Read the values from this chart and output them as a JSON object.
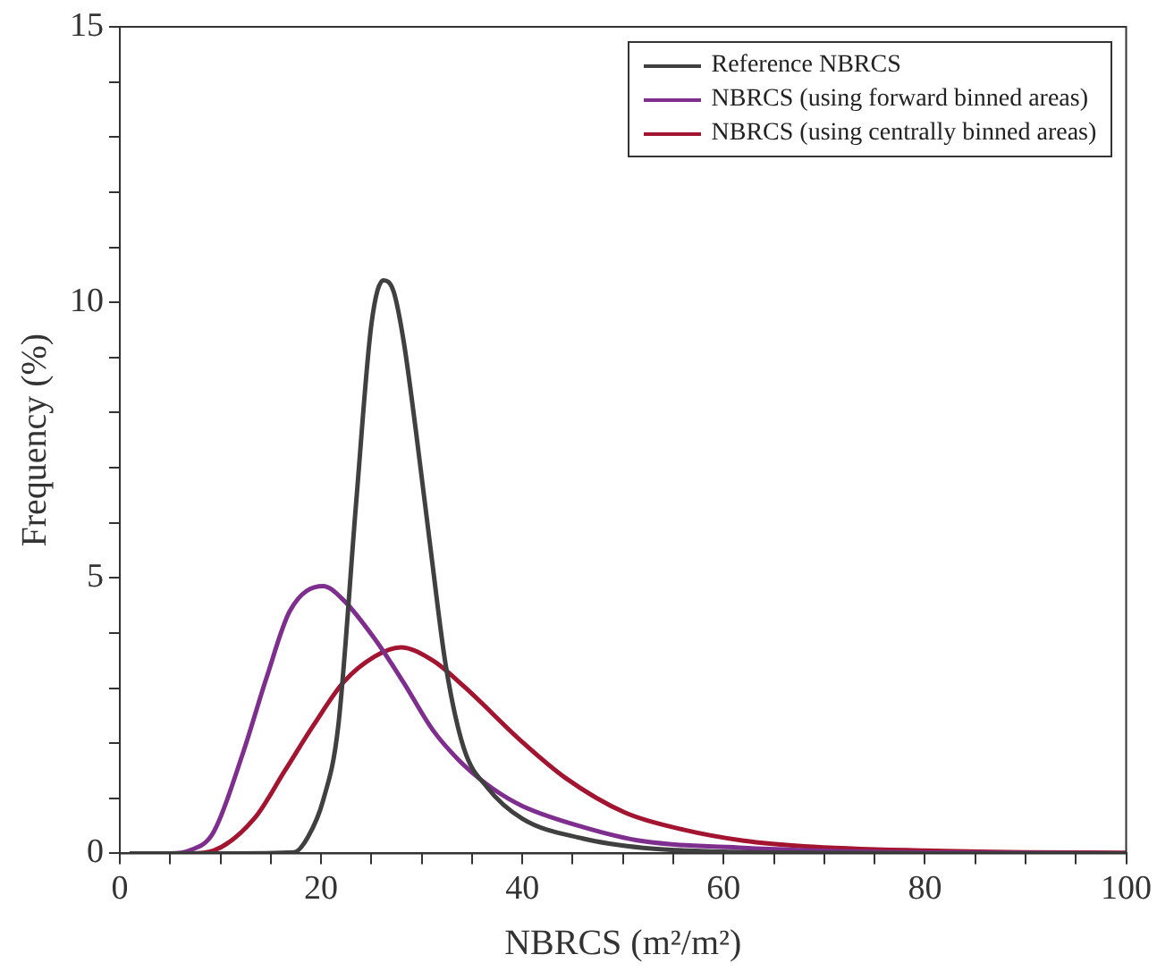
{
  "chart_data": {
    "type": "line",
    "xlabel": "NBRCS (m²/m²)",
    "ylabel": "Frequency (%)",
    "xlim": [
      0,
      100
    ],
    "ylim": [
      0,
      15
    ],
    "xticks": [
      0,
      {
        "value": 5,
        "label": null
      },
      {
        "value": 10,
        "label": null
      },
      {
        "value": 15,
        "label": null
      },
      20,
      {
        "value": 25,
        "label": null
      },
      {
        "value": 30,
        "label": null
      },
      {
        "value": 35,
        "label": null
      },
      40,
      {
        "value": 45,
        "label": null
      },
      {
        "value": 50,
        "label": null
      },
      {
        "value": 55,
        "label": null
      },
      60,
      {
        "value": 65,
        "label": null
      },
      {
        "value": 70,
        "label": null
      },
      {
        "value": 75,
        "label": null
      },
      80,
      {
        "value": 85,
        "label": null
      },
      {
        "value": 90,
        "label": null
      },
      {
        "value": 95,
        "label": null
      },
      100
    ],
    "yticks": [
      0,
      {
        "value": 1,
        "label": null
      },
      {
        "value": 2,
        "label": null
      },
      {
        "value": 3,
        "label": null
      },
      {
        "value": 4,
        "label": null
      },
      5,
      {
        "value": 6,
        "label": null
      },
      {
        "value": 7,
        "label": null
      },
      {
        "value": 8,
        "label": null
      },
      {
        "value": 9,
        "label": null
      },
      10,
      {
        "value": 11,
        "label": null
      },
      {
        "value": 12,
        "label": null
      },
      {
        "value": 13,
        "label": null
      },
      {
        "value": 14,
        "label": null
      },
      15
    ],
    "grid": false,
    "legend": "top right",
    "marker": "none",
    "line_style": "solid",
    "series": [
      {
        "name": "Reference NBRCS",
        "color": "#404040",
        "x": [
          1,
          10,
          17.3,
          18.7,
          20.2,
          21.7,
          23.5,
          25,
          26.2,
          27.2,
          28.2,
          29.4,
          30.9,
          32.4,
          34.2,
          36.5,
          40,
          46,
          52,
          60,
          70,
          80,
          90,
          100
        ],
        "values": [
          0,
          0,
          0.02,
          0.3,
          0.96,
          2.3,
          6.4,
          9.6,
          10.4,
          10.2,
          9.3,
          7.7,
          5.5,
          3.4,
          1.9,
          1.2,
          0.63,
          0.27,
          0.1,
          0.03,
          0.01,
          0,
          0,
          0
        ]
      },
      {
        "name": "NBRCS (using forward binned areas)",
        "color": "#7e2f8e",
        "x": [
          1,
          5,
          6.9,
          9.3,
          12.2,
          14.6,
          16.9,
          20.2,
          22.2,
          25.3,
          28.2,
          31.1,
          34.2,
          37.1,
          40,
          46,
          52,
          62,
          74,
          86,
          100
        ],
        "values": [
          0,
          0,
          0.05,
          0.38,
          1.8,
          3.2,
          4.4,
          4.85,
          4.6,
          3.9,
          3.1,
          2.24,
          1.6,
          1.17,
          0.86,
          0.48,
          0.22,
          0.1,
          0.03,
          0.01,
          0
        ]
      },
      {
        "name": "NBRCS (using centrally binned areas)",
        "color": "#a2142f",
        "x": [
          1,
          7,
          9.3,
          13.4,
          16.4,
          19.3,
          22.2,
          25.3,
          27.9,
          31.1,
          34.2,
          40,
          44.2,
          50.2,
          56,
          62,
          68,
          80,
          90,
          100
        ],
        "values": [
          0,
          0,
          0.05,
          0.64,
          1.5,
          2.34,
          3.1,
          3.57,
          3.74,
          3.5,
          3.03,
          2.02,
          1.38,
          0.74,
          0.43,
          0.23,
          0.13,
          0.05,
          0.02,
          0.01
        ]
      }
    ]
  }
}
